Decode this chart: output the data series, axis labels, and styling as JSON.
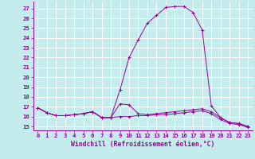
{
  "xlabel": "Windchill (Refroidissement éolien,°C)",
  "background_color": "#c5ecec",
  "grid_color": "#ffffff",
  "line_color": "#990099",
  "x_hours": [
    0,
    1,
    2,
    3,
    4,
    5,
    6,
    7,
    8,
    9,
    10,
    11,
    12,
    13,
    14,
    15,
    16,
    17,
    18,
    19,
    20,
    21,
    22,
    23
  ],
  "curve1": [
    16.9,
    16.4,
    16.1,
    16.1,
    16.2,
    16.3,
    16.5,
    15.9,
    15.9,
    18.7,
    22.0,
    23.8,
    25.5,
    26.3,
    27.1,
    27.2,
    27.2,
    26.6,
    24.8,
    17.1,
    15.9,
    15.4,
    15.3,
    15.0
  ],
  "curve2": [
    16.9,
    16.4,
    16.1,
    16.1,
    16.2,
    16.3,
    16.5,
    15.9,
    15.9,
    17.3,
    17.2,
    16.3,
    16.2,
    16.3,
    16.4,
    16.5,
    16.6,
    16.7,
    16.8,
    16.5,
    15.9,
    15.4,
    15.3,
    15.0
  ],
  "curve3": [
    16.9,
    16.4,
    16.1,
    16.1,
    16.2,
    16.3,
    16.5,
    15.9,
    15.9,
    16.0,
    16.0,
    16.1,
    16.1,
    16.2,
    16.2,
    16.3,
    16.4,
    16.5,
    16.6,
    16.3,
    15.7,
    15.3,
    15.2,
    14.9
  ],
  "ylim": [
    14.6,
    27.7
  ],
  "xlim": [
    -0.5,
    23.5
  ],
  "yticks": [
    15,
    16,
    17,
    18,
    19,
    20,
    21,
    22,
    23,
    24,
    25,
    26,
    27
  ],
  "xticks": [
    0,
    1,
    2,
    3,
    4,
    5,
    6,
    7,
    8,
    9,
    10,
    11,
    12,
    13,
    14,
    15,
    16,
    17,
    18,
    19,
    20,
    21,
    22,
    23
  ],
  "fontsize_label": 5.8,
  "fontsize_tick": 5.2,
  "marker": "+"
}
